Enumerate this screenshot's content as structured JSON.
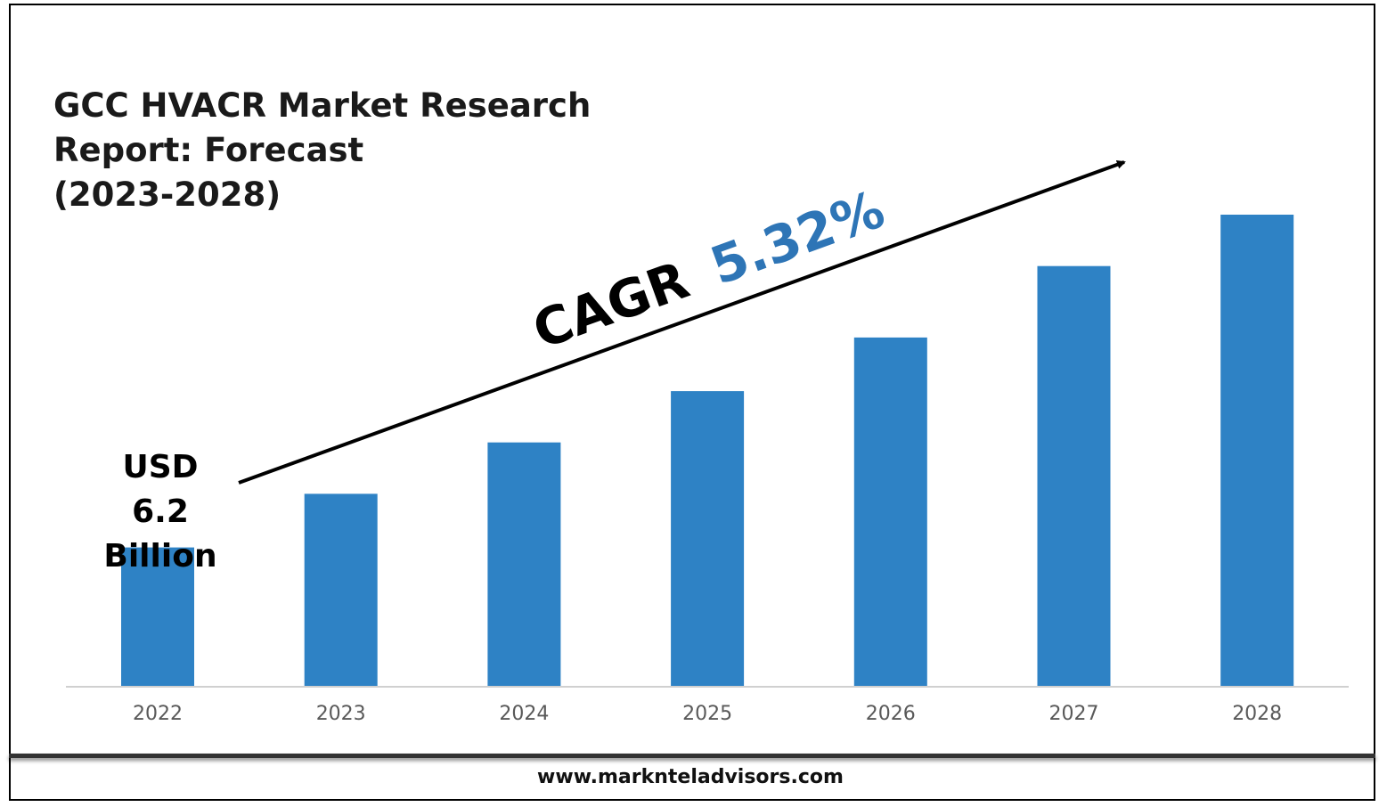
{
  "title_lines": [
    "GCC HVACR Market Research",
    "Report: Forecast",
    "(2023-2028)"
  ],
  "annotations": {
    "usd_lines": [
      "USD",
      "6.2",
      "Billion"
    ],
    "cagr_label": "CAGR",
    "cagr_value": "5.32%",
    "cagr_color": "#2e75b6",
    "arrow_color": "#000000"
  },
  "footer": {
    "url": "www.marknteladvisors.com"
  },
  "chart_data": {
    "type": "bar",
    "categories": [
      "2022",
      "2023",
      "2024",
      "2025",
      "2026",
      "2027",
      "2028"
    ],
    "values": [
      6.2,
      8.6,
      10.9,
      13.2,
      15.6,
      18.8,
      21.1
    ],
    "bar_color": "#2e82c5",
    "axis_color": "#d0d0d0",
    "tick_color": "#595959",
    "title": "GCC HVACR Market Research Report: Forecast (2023-2028)",
    "xlabel": "",
    "ylabel": "",
    "grid": false,
    "legend": "none"
  }
}
